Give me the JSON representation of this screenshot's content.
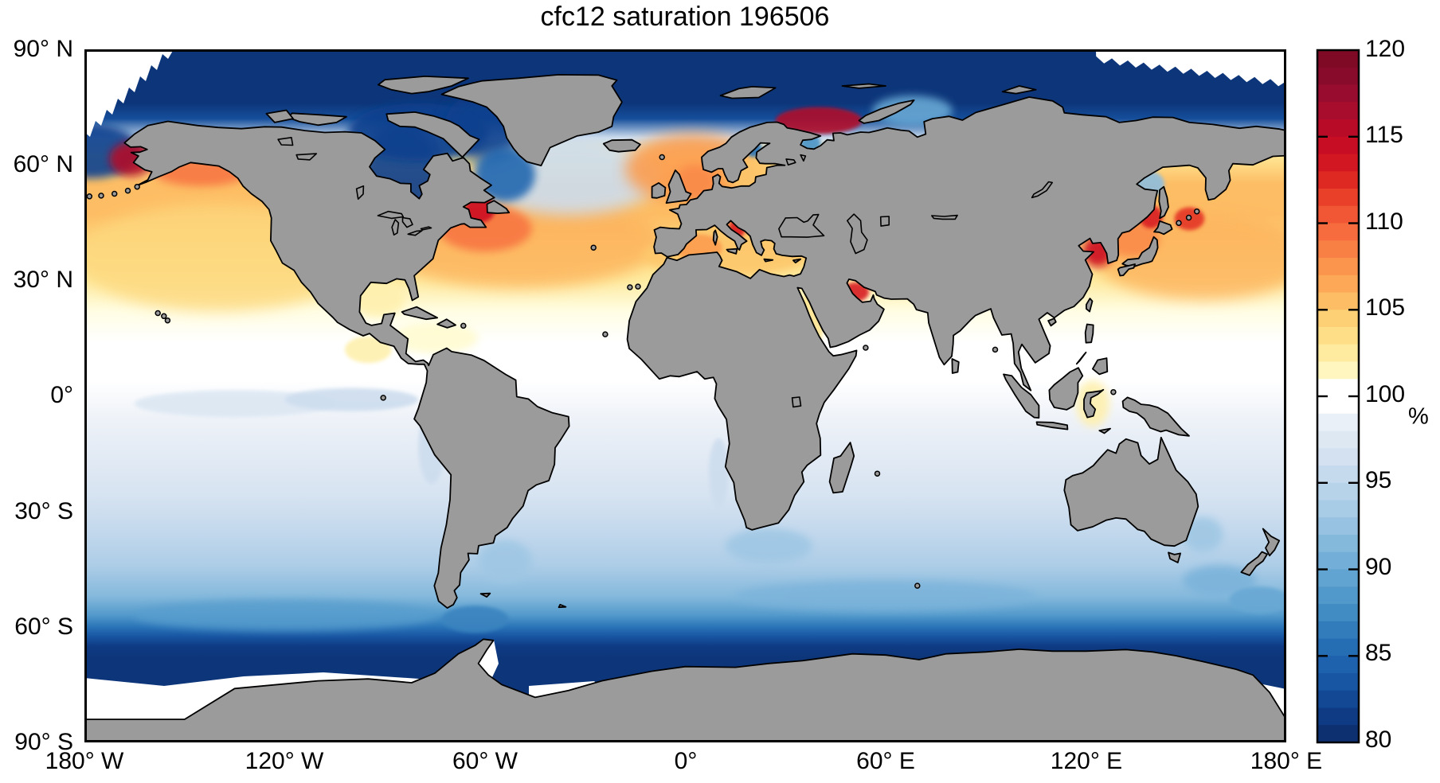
{
  "title": "cfc12 saturation 196506",
  "axes": {
    "lat_ticks": [
      "90° N",
      "60° N",
      "30° N",
      "0°",
      "30° S",
      "60° S",
      "90° S"
    ],
    "lon_ticks": [
      "180° W",
      "120° W",
      "60° W",
      "0°",
      "60° E",
      "120° E",
      "180° E"
    ],
    "lat_ticks_deg": [
      90,
      60,
      30,
      0,
      -30,
      -60,
      -90
    ],
    "lon_ticks_deg": [
      -180,
      -120,
      -60,
      0,
      60,
      120,
      180
    ]
  },
  "colorbar": {
    "unit_label": "%",
    "min": 80,
    "max": 120,
    "band_interval": 1,
    "tick_values": [
      120,
      115,
      110,
      105,
      100,
      95,
      90,
      85,
      80
    ],
    "tick_labels": [
      "120",
      "115",
      "110",
      "105",
      "100",
      "95",
      "90",
      "85",
      "80"
    ],
    "position": "right"
  },
  "colors": {
    "land": "#9b9b9b",
    "coastline": "#000000",
    "frame": "#000000",
    "background": "#ffffff",
    "ice_gap": "#ffffff"
  },
  "chart_data": {
    "type": "heatmap",
    "title": "cfc12 saturation 196506",
    "variable": "CFC-12 saturation",
    "units": "%",
    "time_label": "196506",
    "projection": "equirectangular",
    "lon_range": [
      -180,
      180
    ],
    "lat_range": [
      -90,
      90
    ],
    "color_range": [
      80,
      120
    ],
    "grid": false,
    "colorbar_position": "right",
    "colormap_stops": [
      [
        80,
        "#0a2a66"
      ],
      [
        82,
        "#10418e"
      ],
      [
        84,
        "#1a5ba8"
      ],
      [
        86,
        "#2a74b8"
      ],
      [
        88,
        "#4a94c8"
      ],
      [
        90,
        "#68a8d4"
      ],
      [
        92,
        "#8ebedf"
      ],
      [
        94,
        "#b0cfe8"
      ],
      [
        96,
        "#cdddee"
      ],
      [
        98,
        "#e4ecf5"
      ],
      [
        99,
        "#f0f4f9"
      ],
      [
        99.5,
        "#ffffff"
      ],
      [
        100.5,
        "#ffffff"
      ],
      [
        101,
        "#fffbd0"
      ],
      [
        102,
        "#fef0ae"
      ],
      [
        103,
        "#fee592"
      ],
      [
        104,
        "#fdd87e"
      ],
      [
        105,
        "#fdc76c"
      ],
      [
        106,
        "#fdb25c"
      ],
      [
        107,
        "#fc9d50"
      ],
      [
        108,
        "#fa8a48"
      ],
      [
        109,
        "#f77642"
      ],
      [
        110,
        "#f4623a"
      ],
      [
        111,
        "#ee4c2e"
      ],
      [
        112,
        "#e43425"
      ],
      [
        113,
        "#d81e21"
      ],
      [
        114,
        "#cc1022"
      ],
      [
        115,
        "#c00a24"
      ],
      [
        116,
        "#b00c2c"
      ],
      [
        117,
        "#a00d30"
      ],
      [
        118,
        "#8f0c2e"
      ],
      [
        120,
        "#780922"
      ]
    ],
    "zonal_mean": {
      "lat": [
        90,
        76,
        72,
        67,
        62,
        55,
        47,
        38,
        30,
        22,
        14,
        4,
        -6,
        -16,
        -26,
        -36,
        -44,
        -52,
        -57,
        -60,
        -62.5,
        -65,
        -68,
        -75,
        -90
      ],
      "value": [
        81,
        81,
        83,
        96,
        103,
        105.5,
        105.5,
        104,
        102.5,
        100.8,
        100.1,
        99.9,
        98.8,
        97.8,
        96.8,
        95.2,
        93.8,
        91.5,
        88.5,
        86,
        83.5,
        81.5,
        81,
        81,
        81
      ]
    },
    "anomaly_regions": [
      {
        "name": "Bering Sea / Norton Sound",
        "lon": -166,
        "lat": 61.5,
        "dlon": 13,
        "dlat": 9,
        "value": 116
      },
      {
        "name": "Gulf of Alaska coastal",
        "lon": -145,
        "lat": 58.5,
        "dlon": 30,
        "dlat": 8,
        "value": 109
      },
      {
        "name": "Northeast Pacific subtropical",
        "lon": -140,
        "lat": 36,
        "dlon": 85,
        "dlat": 28,
        "value": 104
      },
      {
        "name": "Hudson Bay",
        "lon": -85,
        "lat": 58,
        "dlon": 26,
        "dlat": 27,
        "value": 82
      },
      {
        "name": "Canadian Arctic Archipelago",
        "lon": -80,
        "lat": 68.5,
        "dlon": 42,
        "dlat": 15,
        "value": 82
      },
      {
        "name": "Baffin Bay",
        "lon": -60,
        "lat": 70,
        "dlon": 24,
        "dlat": 18,
        "value": 82
      },
      {
        "name": "Labrador Sea",
        "lon": -54,
        "lat": 57.5,
        "dlon": 18,
        "dlat": 14,
        "value": 85
      },
      {
        "name": "Gulf of St. Lawrence",
        "lon": -61.5,
        "lat": 48.5,
        "dlon": 9,
        "dlat": 7,
        "value": 114
      },
      {
        "name": "Northwest Atlantic shelf",
        "lon": -60,
        "lat": 43.5,
        "dlon": 28,
        "dlat": 12,
        "value": 109
      },
      {
        "name": "North Atlantic subtropical gyre",
        "lon": -50,
        "lat": 40,
        "dlon": 85,
        "dlat": 24,
        "value": 106
      },
      {
        "name": "Subpolar North Atlantic",
        "lon": -35,
        "lat": 57,
        "dlon": 55,
        "dlat": 20,
        "value": 96
      },
      {
        "name": "Norwegian and North Sea",
        "lon": 2,
        "lat": 59,
        "dlon": 40,
        "dlat": 18,
        "value": 107
      },
      {
        "name": "North Sea core",
        "lon": 3,
        "lat": 55.5,
        "dlon": 12,
        "dlat": 9,
        "value": 108
      },
      {
        "name": "Baltic Sea",
        "lon": 19,
        "lat": 57.5,
        "dlon": 14,
        "dlat": 9,
        "value": 105
      },
      {
        "name": "Gulf of Bothnia",
        "lon": 20.5,
        "lat": 64,
        "dlon": 5,
        "dlat": 4,
        "value": 86
      },
      {
        "name": "Barents Sea / Novaya Zemlya",
        "lon": 40,
        "lat": 71.5,
        "dlon": 26,
        "dlat": 7,
        "value": 116
      },
      {
        "name": "Kara Sea",
        "lon": 68,
        "lat": 74,
        "dlon": 24,
        "dlat": 8,
        "value": 90
      },
      {
        "name": "White Sea",
        "lon": 37.5,
        "lat": 65.5,
        "dlon": 6,
        "dlat": 5,
        "value": 88
      },
      {
        "name": "Mediterranean Sea",
        "lon": 12,
        "lat": 36.5,
        "dlon": 50,
        "dlat": 11,
        "value": 105
      },
      {
        "name": "Western Mediterranean core",
        "lon": 4,
        "lat": 38.5,
        "dlon": 14,
        "dlat": 7,
        "value": 107
      },
      {
        "name": "Adriatic Sea",
        "lon": 15.5,
        "lat": 43.5,
        "dlon": 5,
        "dlat": 5,
        "value": 113
      },
      {
        "name": "Red Sea",
        "lon": 38,
        "lat": 20,
        "dlon": 7,
        "dlat": 16,
        "value": 103
      },
      {
        "name": "Persian Gulf",
        "lon": 51,
        "lat": 27,
        "dlon": 8,
        "dlat": 5,
        "value": 113
      },
      {
        "name": "Gulf of Mexico",
        "lon": -92,
        "lat": 25,
        "dlon": 16,
        "dlat": 9,
        "value": 102
      },
      {
        "name": "Caribbean Sea",
        "lon": -75,
        "lat": 15,
        "dlon": 26,
        "dlat": 8,
        "value": 101
      },
      {
        "name": "Central America Pacific coast",
        "lon": -95,
        "lat": 12,
        "dlon": 14,
        "dlat": 7,
        "value": 102
      },
      {
        "name": "Indonesian seas",
        "lon": 122,
        "lat": -2,
        "dlon": 10,
        "dlat": 12,
        "value": 102
      },
      {
        "name": "Kuroshio extension",
        "lon": 155,
        "lat": 36,
        "dlon": 65,
        "dlat": 22,
        "value": 106
      },
      {
        "name": "Yellow Sea / Bohai",
        "lon": 123.5,
        "lat": 37.5,
        "dlon": 9,
        "dlat": 8,
        "value": 114
      },
      {
        "name": "Sea of Japan",
        "lon": 134,
        "lat": 41,
        "dlon": 16,
        "dlat": 10,
        "value": 108
      },
      {
        "name": "Tatar Strait / N Sea of Japan",
        "lon": 139.5,
        "lat": 46.5,
        "dlon": 7,
        "dlat": 6,
        "value": 113
      },
      {
        "name": "Kuril Islands",
        "lon": 151,
        "lat": 46,
        "dlon": 9,
        "dlat": 6,
        "value": 112
      },
      {
        "name": "Sea of Okhotsk west",
        "lon": 138.5,
        "lat": 55,
        "dlon": 10,
        "dlat": 7,
        "value": 92
      },
      {
        "name": "Bering Sea northwest",
        "lon": -178,
        "lat": 63.5,
        "dlon": 30,
        "dlat": 14,
        "value": 82
      },
      {
        "name": "Equatorial Pacific west streak",
        "lon": -135,
        "lat": -2,
        "dlon": 60,
        "dlat": 7,
        "value": 97
      },
      {
        "name": "Equatorial Pacific east streak",
        "lon": -100,
        "lat": -1,
        "dlon": 40,
        "dlat": 6,
        "value": 96
      },
      {
        "name": "Peru-Chile upwelling",
        "lon": -76,
        "lat": -13,
        "dlon": 8,
        "dlat": 20,
        "value": 96
      },
      {
        "name": "Benguela upwelling",
        "lon": 10,
        "lat": -20,
        "dlon": 6,
        "dlat": 18,
        "value": 96
      },
      {
        "name": "Agulhas retroflection",
        "lon": 25,
        "lat": -39,
        "dlon": 26,
        "dlat": 9,
        "value": 93
      },
      {
        "name": "Brazil-Malvinas confluence",
        "lon": -54,
        "lat": -43,
        "dlon": 16,
        "dlat": 11,
        "value": 93
      },
      {
        "name": "East Australian Current",
        "lon": 155,
        "lat": -36,
        "dlon": 12,
        "dlat": 9,
        "value": 93
      },
      {
        "name": "South Tasman Sea",
        "lon": 160,
        "lat": -48,
        "dlon": 22,
        "dlat": 8,
        "value": 91
      },
      {
        "name": "South of New Zealand",
        "lon": 172,
        "lat": -53,
        "dlon": 18,
        "dlat": 7,
        "value": 90
      },
      {
        "name": "Southern Indian Ocean front",
        "lon": 60,
        "lat": -52,
        "dlon": 90,
        "dlat": 8,
        "value": 91
      },
      {
        "name": "Southern Pacific front",
        "lon": -120,
        "lat": -57,
        "dlon": 90,
        "dlat": 8,
        "value": 89
      },
      {
        "name": "Drake Passage",
        "lon": -63,
        "lat": -58,
        "dlon": 20,
        "dlat": 7,
        "value": 87
      }
    ]
  }
}
